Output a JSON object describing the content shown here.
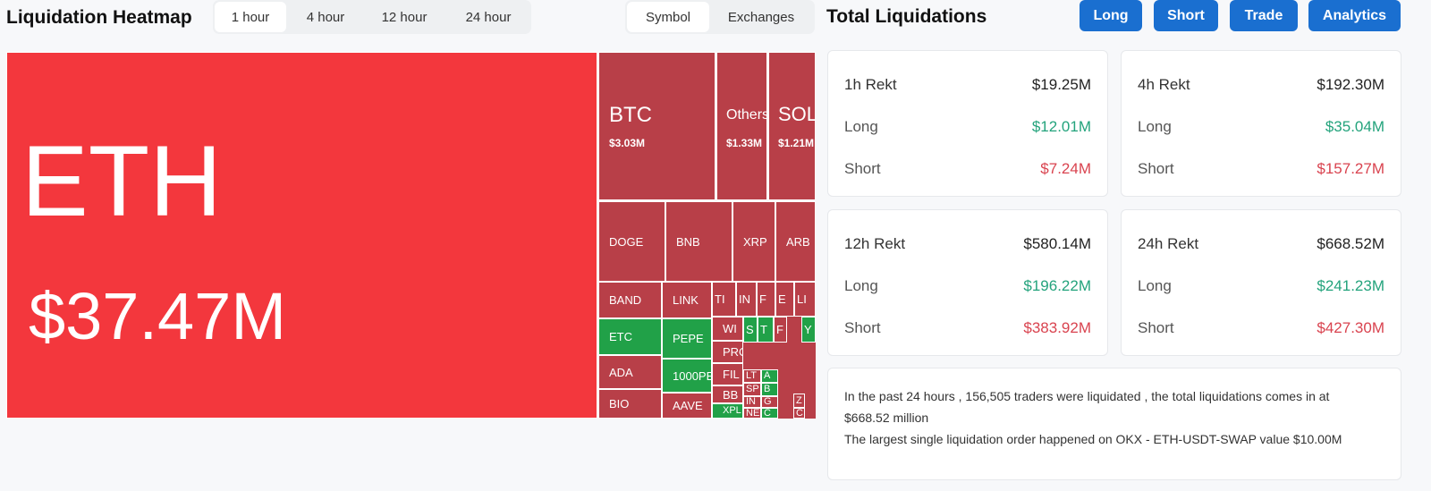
{
  "header": {
    "title": "Liquidation Heatmap",
    "time_tabs": [
      "1 hour",
      "4 hour",
      "12 hour",
      "24 hour"
    ],
    "view_tabs": [
      "Symbol",
      "Exchanges"
    ]
  },
  "heatmap": {
    "tiles": [
      {
        "label": "ETH",
        "value": "$37.47M"
      },
      {
        "label": "BTC",
        "value": "$3.03M"
      },
      {
        "label": "Others",
        "value": "$1.33M"
      },
      {
        "label": "SOL",
        "value": "$1.21M"
      },
      {
        "label": "DOGE"
      },
      {
        "label": "BNB"
      },
      {
        "label": "XRP"
      },
      {
        "label": "ARB"
      },
      {
        "label": "BAND"
      },
      {
        "label": "ETC"
      },
      {
        "label": "ADA"
      },
      {
        "label": "BIO"
      },
      {
        "label": "LINK"
      },
      {
        "label": "PEPE"
      },
      {
        "label": "1000PE"
      },
      {
        "label": "AAVE"
      },
      {
        "label": "TI"
      },
      {
        "label": "IN"
      },
      {
        "label": "F"
      },
      {
        "label": "E"
      },
      {
        "label": "LI"
      },
      {
        "label": "WI"
      },
      {
        "label": "PRO"
      },
      {
        "label": "FIL"
      },
      {
        "label": "BB"
      },
      {
        "label": "XPL"
      },
      {
        "label": "S"
      },
      {
        "label": "T"
      },
      {
        "label": "F"
      },
      {
        "label": "Y"
      },
      {
        "label": "LT"
      },
      {
        "label": "SP"
      },
      {
        "label": "IN"
      },
      {
        "label": "NE"
      },
      {
        "label": "A"
      },
      {
        "label": "B"
      },
      {
        "label": "G"
      },
      {
        "label": "C"
      },
      {
        "label": "Z"
      },
      {
        "label": "C"
      }
    ]
  },
  "summary": {
    "title": "Total Liquidations",
    "buttons": [
      "Long",
      "Short",
      "Trade",
      "Analytics"
    ],
    "cards": [
      {
        "title": "1h Rekt",
        "total": "$19.25M",
        "rows": [
          {
            "label": "Long",
            "value": "$12.01M"
          },
          {
            "label": "Short",
            "value": "$7.24M"
          }
        ]
      },
      {
        "title": "4h Rekt",
        "total": "$192.30M",
        "rows": [
          {
            "label": "Long",
            "value": "$35.04M"
          },
          {
            "label": "Short",
            "value": "$157.27M"
          }
        ]
      },
      {
        "title": "12h Rekt",
        "total": "$580.14M",
        "rows": [
          {
            "label": "Long",
            "value": "$196.22M"
          },
          {
            "label": "Short",
            "value": "$383.92M"
          }
        ]
      },
      {
        "title": "24h Rekt",
        "total": "$668.52M",
        "rows": [
          {
            "label": "Long",
            "value": "$241.23M"
          },
          {
            "label": "Short",
            "value": "$427.30M"
          }
        ]
      }
    ],
    "note": [
      "In the past 24 hours , 156,505 traders were liquidated , the total liquidations comes in at $668.52 million",
      "The largest single liquidation order happened on OKX - ETH-USDT-SWAP value $10.00M"
    ]
  }
}
